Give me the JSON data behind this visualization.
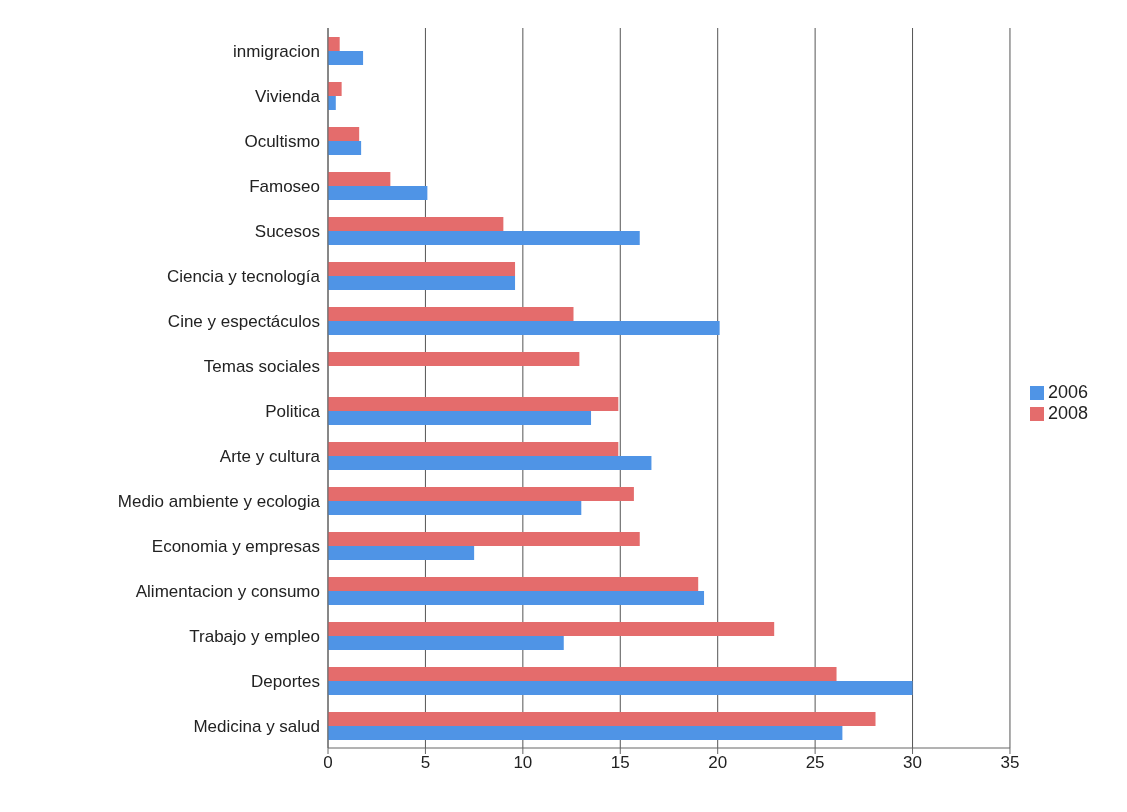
{
  "chart_data": {
    "type": "bar",
    "orientation": "horizontal",
    "categories": [
      "inmigracion",
      "Vivienda",
      "Ocultismo",
      "Famoseo",
      "Sucesos",
      "Ciencia y tecnología",
      "Cine y espectáculos",
      "Temas sociales",
      "Politica",
      "Arte y cultura",
      "Medio ambiente y ecologia",
      "Economia y empresas",
      "Alimentacion y consumo",
      "Trabajo y empleo",
      "Deportes",
      "Medicina y salud"
    ],
    "series": [
      {
        "name": "2008",
        "color": "#e46c6c",
        "values": [
          0.6,
          0.7,
          1.6,
          3.2,
          9.0,
          9.6,
          12.6,
          12.9,
          14.9,
          14.9,
          15.7,
          16.0,
          19.0,
          22.9,
          26.1,
          28.1
        ]
      },
      {
        "name": "2006",
        "color": "#4f94e6",
        "values": [
          1.8,
          0.4,
          1.7,
          5.1,
          16.0,
          9.6,
          20.1,
          null,
          13.5,
          16.6,
          13.0,
          7.5,
          19.3,
          12.1,
          30.0,
          26.4
        ]
      }
    ],
    "xlim": [
      0,
      35
    ],
    "xticks": [
      0,
      5,
      10,
      15,
      20,
      25,
      30,
      35
    ],
    "grid": "x",
    "legend": "right"
  }
}
